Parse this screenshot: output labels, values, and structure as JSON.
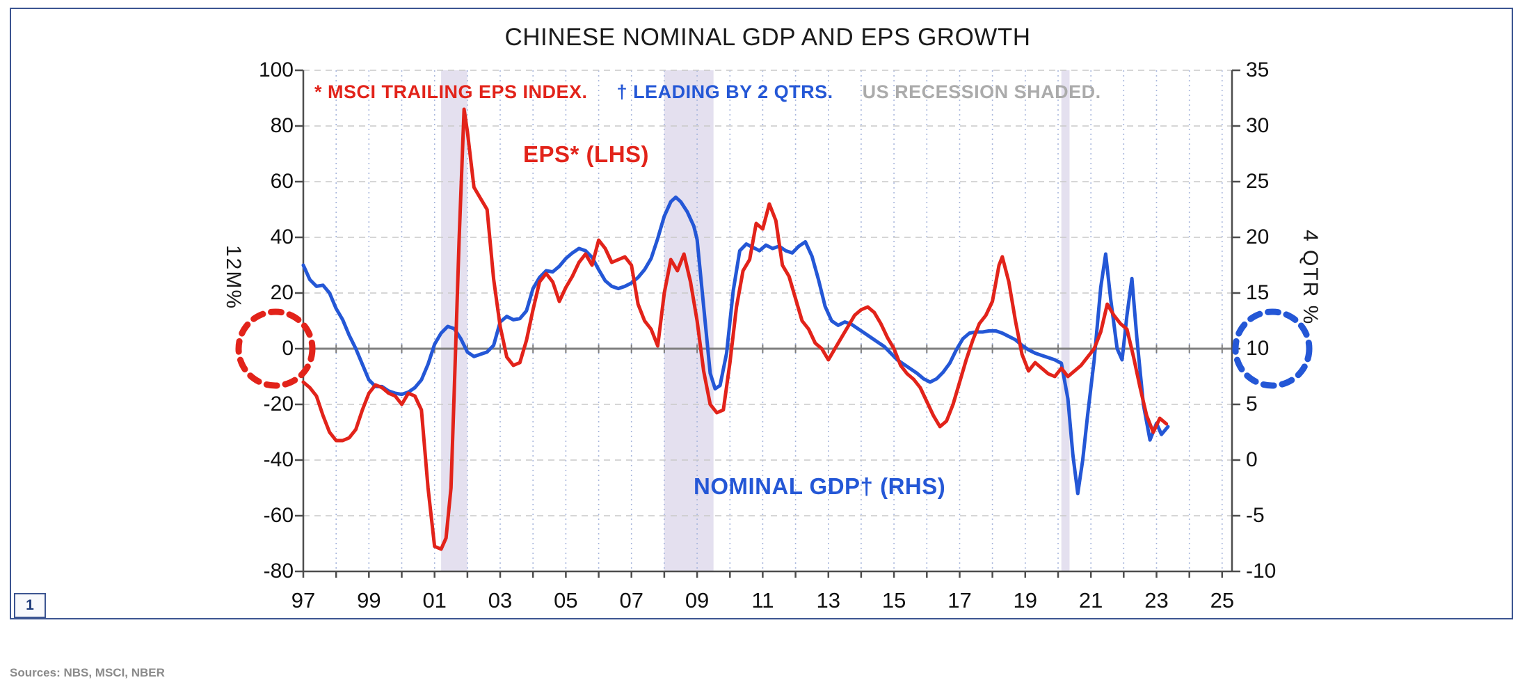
{
  "header": {
    "title": "CHINESE NOMINAL GDP AND EPS GROWTH"
  },
  "legend": {
    "eps": "* MSCI TRAILING EPS INDEX.",
    "gdp": "† LEADING BY 2 QTRS.",
    "recession": "US RECESSION SHADED."
  },
  "annotations": {
    "eps_label": "EPS* (LHS)",
    "gdp_label": "NOMINAL GDP† (RHS)"
  },
  "footer": {
    "page_number": "1",
    "sources": "Sources: NBS, MSCI, NBER"
  },
  "colors": {
    "eps_red": "#e2231a",
    "gdp_blue": "#2457d6",
    "recession": "#e4e0ef",
    "grid_vertical": "#a9b7dc",
    "grid_horizontal": "#c9c9c9",
    "zero_line": "#7f7f7f",
    "axis": "#4d4d4d",
    "legend_gray": "#ababab",
    "frame": "#3c5591"
  },
  "chart_data": {
    "type": "line",
    "title": "CHINESE NOMINAL GDP AND EPS GROWTH",
    "x_range": [
      1997,
      2025.3
    ],
    "x_ticks": [
      {
        "label": "97",
        "year": 1997
      },
      {
        "label": "99",
        "year": 1999
      },
      {
        "label": "01",
        "year": 2001
      },
      {
        "label": "03",
        "year": 2003
      },
      {
        "label": "05",
        "year": 2005
      },
      {
        "label": "07",
        "year": 2007
      },
      {
        "label": "09",
        "year": 2009
      },
      {
        "label": "11",
        "year": 2011
      },
      {
        "label": "13",
        "year": 2013
      },
      {
        "label": "15",
        "year": 2015
      },
      {
        "label": "17",
        "year": 2017
      },
      {
        "label": "19",
        "year": 2019
      },
      {
        "label": "21",
        "year": 2021
      },
      {
        "label": "23",
        "year": 2023
      },
      {
        "label": "25",
        "year": 2025
      }
    ],
    "left_axis": {
      "title": "12M%",
      "range": [
        -80,
        100
      ],
      "ticks": [
        100,
        80,
        60,
        40,
        20,
        0,
        -20,
        -40,
        -60,
        -80
      ]
    },
    "right_axis": {
      "title": "4 QTR %",
      "range": [
        -10,
        35
      ],
      "ticks": [
        35,
        30,
        25,
        20,
        15,
        10,
        5,
        0,
        -5,
        -10
      ]
    },
    "recession_bands": [
      [
        2001.2,
        2002.0
      ],
      [
        2008.0,
        2009.5
      ],
      [
        2020.1,
        2020.35
      ]
    ],
    "axis_markers": [
      {
        "axis": "left",
        "value": 0,
        "color": "#e2231a"
      },
      {
        "axis": "right",
        "value": 10,
        "color": "#2457d6"
      }
    ],
    "series": [
      {
        "name": "NOMINAL GDP† (RHS)",
        "axis": "right",
        "color": "#2457d6",
        "points": [
          [
            1997.0,
            17.5
          ],
          [
            1997.2,
            16.2
          ],
          [
            1997.4,
            15.6
          ],
          [
            1997.6,
            15.7
          ],
          [
            1997.8,
            15.0
          ],
          [
            1998.0,
            13.6
          ],
          [
            1998.2,
            12.6
          ],
          [
            1998.4,
            11.2
          ],
          [
            1998.6,
            10.0
          ],
          [
            1998.8,
            8.6
          ],
          [
            1999.0,
            7.2
          ],
          [
            1999.2,
            6.6
          ],
          [
            1999.4,
            6.6
          ],
          [
            1999.6,
            6.2
          ],
          [
            1999.8,
            6.0
          ],
          [
            2000.0,
            5.9
          ],
          [
            2000.2,
            6.1
          ],
          [
            2000.4,
            6.5
          ],
          [
            2000.6,
            7.2
          ],
          [
            2000.8,
            8.6
          ],
          [
            2001.0,
            10.4
          ],
          [
            2001.2,
            11.4
          ],
          [
            2001.4,
            12.0
          ],
          [
            2001.6,
            11.8
          ],
          [
            2001.8,
            10.9
          ],
          [
            2002.0,
            9.7
          ],
          [
            2002.2,
            9.3
          ],
          [
            2002.4,
            9.5
          ],
          [
            2002.6,
            9.7
          ],
          [
            2002.8,
            10.3
          ],
          [
            2003.0,
            12.4
          ],
          [
            2003.2,
            12.9
          ],
          [
            2003.4,
            12.6
          ],
          [
            2003.6,
            12.7
          ],
          [
            2003.8,
            13.4
          ],
          [
            2004.0,
            15.4
          ],
          [
            2004.2,
            16.4
          ],
          [
            2004.4,
            17.0
          ],
          [
            2004.6,
            16.9
          ],
          [
            2004.8,
            17.4
          ],
          [
            2005.0,
            18.1
          ],
          [
            2005.2,
            18.6
          ],
          [
            2005.4,
            19.0
          ],
          [
            2005.6,
            18.8
          ],
          [
            2005.8,
            18.2
          ],
          [
            2006.0,
            17.1
          ],
          [
            2006.2,
            16.1
          ],
          [
            2006.4,
            15.6
          ],
          [
            2006.6,
            15.4
          ],
          [
            2006.8,
            15.6
          ],
          [
            2007.0,
            15.9
          ],
          [
            2007.2,
            16.4
          ],
          [
            2007.4,
            17.1
          ],
          [
            2007.6,
            18.1
          ],
          [
            2007.8,
            19.9
          ],
          [
            2008.0,
            21.9
          ],
          [
            2008.2,
            23.2
          ],
          [
            2008.35,
            23.6
          ],
          [
            2008.5,
            23.2
          ],
          [
            2008.7,
            22.3
          ],
          [
            2008.9,
            21.0
          ],
          [
            2009.0,
            19.8
          ],
          [
            2009.2,
            13.8
          ],
          [
            2009.4,
            7.8
          ],
          [
            2009.55,
            6.4
          ],
          [
            2009.7,
            6.7
          ],
          [
            2009.9,
            9.6
          ],
          [
            2010.1,
            15.2
          ],
          [
            2010.3,
            18.8
          ],
          [
            2010.5,
            19.4
          ],
          [
            2010.7,
            19.1
          ],
          [
            2010.9,
            18.8
          ],
          [
            2011.1,
            19.3
          ],
          [
            2011.3,
            19.0
          ],
          [
            2011.5,
            19.2
          ],
          [
            2011.7,
            18.8
          ],
          [
            2011.9,
            18.6
          ],
          [
            2012.1,
            19.2
          ],
          [
            2012.3,
            19.6
          ],
          [
            2012.5,
            18.3
          ],
          [
            2012.7,
            16.2
          ],
          [
            2012.9,
            13.8
          ],
          [
            2013.1,
            12.5
          ],
          [
            2013.3,
            12.1
          ],
          [
            2013.5,
            12.4
          ],
          [
            2013.7,
            12.2
          ],
          [
            2013.9,
            11.8
          ],
          [
            2014.1,
            11.4
          ],
          [
            2014.3,
            11.0
          ],
          [
            2014.5,
            10.6
          ],
          [
            2014.7,
            10.2
          ],
          [
            2014.9,
            9.6
          ],
          [
            2015.1,
            9.0
          ],
          [
            2015.3,
            8.6
          ],
          [
            2015.5,
            8.2
          ],
          [
            2015.7,
            7.8
          ],
          [
            2015.9,
            7.3
          ],
          [
            2016.1,
            7.0
          ],
          [
            2016.3,
            7.3
          ],
          [
            2016.5,
            7.9
          ],
          [
            2016.7,
            8.7
          ],
          [
            2016.9,
            9.9
          ],
          [
            2017.1,
            10.9
          ],
          [
            2017.3,
            11.4
          ],
          [
            2017.5,
            11.5
          ],
          [
            2017.7,
            11.5
          ],
          [
            2017.9,
            11.6
          ],
          [
            2018.1,
            11.6
          ],
          [
            2018.3,
            11.4
          ],
          [
            2018.5,
            11.1
          ],
          [
            2018.7,
            10.8
          ],
          [
            2018.9,
            10.3
          ],
          [
            2019.1,
            9.9
          ],
          [
            2019.3,
            9.6
          ],
          [
            2019.5,
            9.4
          ],
          [
            2019.7,
            9.2
          ],
          [
            2019.9,
            9.0
          ],
          [
            2020.1,
            8.7
          ],
          [
            2020.3,
            5.5
          ],
          [
            2020.45,
            0.5
          ],
          [
            2020.6,
            -3.0
          ],
          [
            2020.75,
            0.0
          ],
          [
            2020.9,
            4.0
          ],
          [
            2021.1,
            9.0
          ],
          [
            2021.3,
            15.5
          ],
          [
            2021.45,
            18.5
          ],
          [
            2021.6,
            14.5
          ],
          [
            2021.8,
            10.0
          ],
          [
            2021.95,
            9.0
          ],
          [
            2022.1,
            13.0
          ],
          [
            2022.25,
            16.3
          ],
          [
            2022.4,
            11.0
          ],
          [
            2022.6,
            5.0
          ],
          [
            2022.8,
            1.8
          ],
          [
            2023.0,
            3.3
          ],
          [
            2023.15,
            2.3
          ],
          [
            2023.35,
            3.0
          ]
        ]
      },
      {
        "name": "EPS* (LHS)",
        "axis": "left",
        "color": "#e2231a",
        "points": [
          [
            1997.0,
            -12
          ],
          [
            1997.2,
            -14
          ],
          [
            1997.4,
            -17
          ],
          [
            1997.6,
            -24
          ],
          [
            1997.8,
            -30
          ],
          [
            1998.0,
            -33
          ],
          [
            1998.2,
            -33
          ],
          [
            1998.4,
            -32
          ],
          [
            1998.6,
            -29
          ],
          [
            1998.8,
            -22
          ],
          [
            1999.0,
            -16
          ],
          [
            1999.2,
            -13
          ],
          [
            1999.4,
            -14
          ],
          [
            1999.6,
            -16
          ],
          [
            1999.8,
            -17
          ],
          [
            2000.0,
            -20
          ],
          [
            2000.2,
            -16
          ],
          [
            2000.4,
            -17
          ],
          [
            2000.6,
            -22
          ],
          [
            2000.8,
            -50
          ],
          [
            2001.0,
            -71
          ],
          [
            2001.2,
            -72
          ],
          [
            2001.35,
            -68
          ],
          [
            2001.5,
            -50
          ],
          [
            2001.6,
            -15
          ],
          [
            2001.75,
            40
          ],
          [
            2001.9,
            86
          ],
          [
            2002.0,
            78
          ],
          [
            2002.2,
            58
          ],
          [
            2002.4,
            54
          ],
          [
            2002.6,
            50
          ],
          [
            2002.8,
            25
          ],
          [
            2003.0,
            8
          ],
          [
            2003.2,
            -3
          ],
          [
            2003.4,
            -6
          ],
          [
            2003.6,
            -5
          ],
          [
            2003.8,
            3
          ],
          [
            2004.0,
            14
          ],
          [
            2004.2,
            24
          ],
          [
            2004.4,
            27
          ],
          [
            2004.6,
            24
          ],
          [
            2004.8,
            17
          ],
          [
            2005.0,
            22
          ],
          [
            2005.2,
            26
          ],
          [
            2005.4,
            31
          ],
          [
            2005.6,
            34
          ],
          [
            2005.8,
            30
          ],
          [
            2006.0,
            39
          ],
          [
            2006.2,
            36
          ],
          [
            2006.4,
            31
          ],
          [
            2006.6,
            32
          ],
          [
            2006.8,
            33
          ],
          [
            2007.0,
            30
          ],
          [
            2007.2,
            16
          ],
          [
            2007.4,
            10
          ],
          [
            2007.6,
            7
          ],
          [
            2007.8,
            1
          ],
          [
            2008.0,
            20
          ],
          [
            2008.2,
            32
          ],
          [
            2008.4,
            28
          ],
          [
            2008.6,
            34
          ],
          [
            2008.8,
            24
          ],
          [
            2009.0,
            10
          ],
          [
            2009.2,
            -8
          ],
          [
            2009.4,
            -20
          ],
          [
            2009.6,
            -23
          ],
          [
            2009.8,
            -22
          ],
          [
            2010.0,
            -5
          ],
          [
            2010.2,
            15
          ],
          [
            2010.4,
            28
          ],
          [
            2010.6,
            32
          ],
          [
            2010.8,
            45
          ],
          [
            2011.0,
            43
          ],
          [
            2011.2,
            52
          ],
          [
            2011.4,
            46
          ],
          [
            2011.6,
            30
          ],
          [
            2011.8,
            26
          ],
          [
            2012.0,
            18
          ],
          [
            2012.2,
            10
          ],
          [
            2012.4,
            7
          ],
          [
            2012.6,
            2
          ],
          [
            2012.8,
            0
          ],
          [
            2013.0,
            -4
          ],
          [
            2013.2,
            0
          ],
          [
            2013.4,
            4
          ],
          [
            2013.6,
            8
          ],
          [
            2013.8,
            12
          ],
          [
            2014.0,
            14
          ],
          [
            2014.2,
            15
          ],
          [
            2014.4,
            13
          ],
          [
            2014.6,
            9
          ],
          [
            2014.8,
            4
          ],
          [
            2015.0,
            0
          ],
          [
            2015.2,
            -6
          ],
          [
            2015.4,
            -9
          ],
          [
            2015.6,
            -11
          ],
          [
            2015.8,
            -14
          ],
          [
            2016.0,
            -19
          ],
          [
            2016.2,
            -24
          ],
          [
            2016.4,
            -28
          ],
          [
            2016.6,
            -26
          ],
          [
            2016.8,
            -20
          ],
          [
            2017.0,
            -12
          ],
          [
            2017.2,
            -4
          ],
          [
            2017.4,
            3
          ],
          [
            2017.6,
            9
          ],
          [
            2017.8,
            12
          ],
          [
            2018.0,
            17
          ],
          [
            2018.2,
            30
          ],
          [
            2018.3,
            33
          ],
          [
            2018.5,
            24
          ],
          [
            2018.7,
            10
          ],
          [
            2018.9,
            -2
          ],
          [
            2019.1,
            -8
          ],
          [
            2019.3,
            -5
          ],
          [
            2019.5,
            -7
          ],
          [
            2019.7,
            -9
          ],
          [
            2019.9,
            -10
          ],
          [
            2020.1,
            -7
          ],
          [
            2020.3,
            -10
          ],
          [
            2020.5,
            -8
          ],
          [
            2020.7,
            -6
          ],
          [
            2020.9,
            -3
          ],
          [
            2021.1,
            0
          ],
          [
            2021.3,
            6
          ],
          [
            2021.5,
            16
          ],
          [
            2021.7,
            12
          ],
          [
            2021.9,
            9
          ],
          [
            2022.1,
            7
          ],
          [
            2022.3,
            -3
          ],
          [
            2022.5,
            -14
          ],
          [
            2022.7,
            -24
          ],
          [
            2022.9,
            -30
          ],
          [
            2023.1,
            -25
          ],
          [
            2023.3,
            -27
          ]
        ]
      }
    ]
  }
}
